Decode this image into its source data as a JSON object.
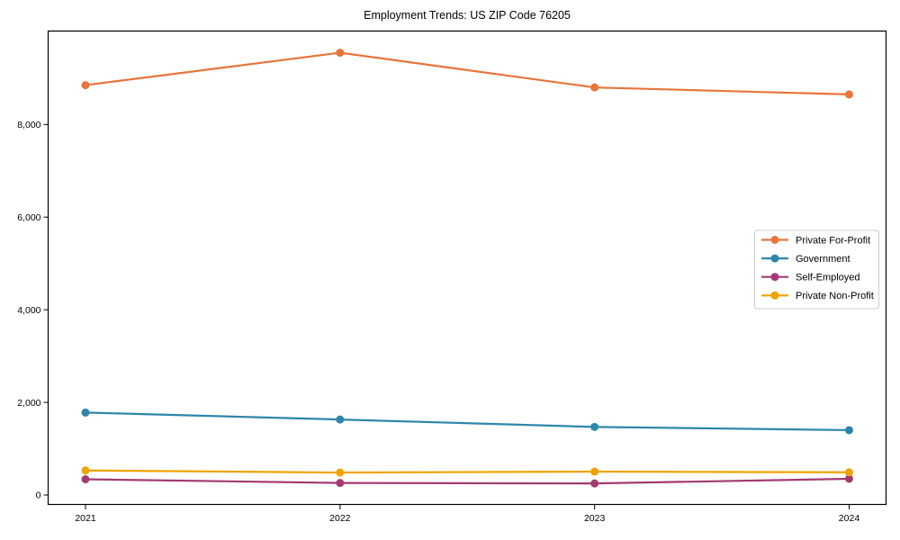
{
  "chart_data": {
    "type": "line",
    "title": "Employment Trends: US ZIP Code 76205",
    "xlabel": "",
    "ylabel": "",
    "x_categories": [
      "2021",
      "2022",
      "2023",
      "2024"
    ],
    "y_ticks": [
      {
        "value": 0,
        "label": "0"
      },
      {
        "value": 2000,
        "label": "2,000"
      },
      {
        "value": 4000,
        "label": "4,000"
      },
      {
        "value": 6000,
        "label": "6,000"
      },
      {
        "value": 8000,
        "label": "8,000"
      }
    ],
    "ylim": [
      -204,
      10017
    ],
    "grid": false,
    "frame": true,
    "legend_position": "right-middle",
    "series": [
      {
        "name": "Private For-Profit",
        "color": "#E8743B",
        "values": [
          8850,
          9550,
          8800,
          8650
        ]
      },
      {
        "name": "Government",
        "color": "#2E86AB",
        "values": [
          1780,
          1630,
          1470,
          1400
        ]
      },
      {
        "name": "Self-Employed",
        "color": "#A23B72",
        "values": [
          340,
          260,
          250,
          350
        ]
      },
      {
        "name": "Private Non-Profit",
        "color": "#F0A202",
        "values": [
          530,
          485,
          505,
          490
        ]
      }
    ],
    "text_color": "#000000",
    "spine_color": "#000000",
    "legend_border_color": "#cccccc"
  }
}
